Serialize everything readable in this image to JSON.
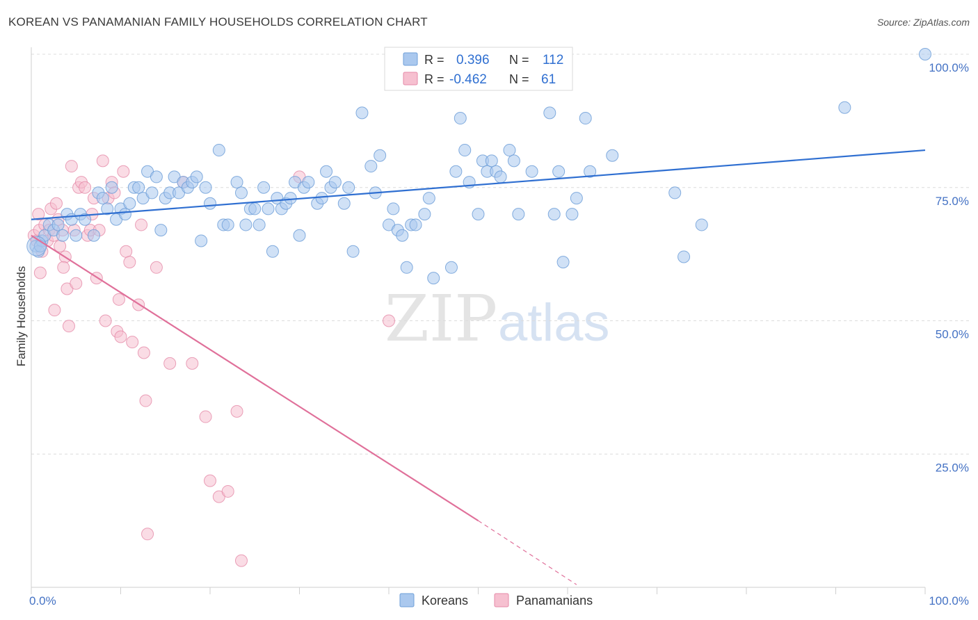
{
  "title": "KOREAN VS PANAMANIAN FAMILY HOUSEHOLDS CORRELATION CHART",
  "source": "Source: ZipAtlas.com",
  "watermark": {
    "zip": "ZIP",
    "atlas": "atlas"
  },
  "legend_box": {
    "row1": {
      "r_label": "R =",
      "r_value": "0.396",
      "n_label": "N =",
      "n_value": "112"
    },
    "row2": {
      "r_label": "R =",
      "r_value": "-0.462",
      "n_label": "N =",
      "n_value": "61"
    }
  },
  "bottom_legend": {
    "a": "Koreans",
    "b": "Panamanians"
  },
  "colors": {
    "blue_fill": "#aac8ee",
    "blue_stroke": "#6f9fd8",
    "blue_line": "#2f6fd1",
    "pink_fill": "#f6c0d0",
    "pink_stroke": "#e58aa8",
    "pink_line": "#e0709a"
  },
  "chart_data": {
    "type": "scatter",
    "title": "KOREAN VS PANAMANIAN FAMILY HOUSEHOLDS CORRELATION CHART",
    "xlabel": "",
    "ylabel": "Family Households",
    "xlim": [
      0,
      100
    ],
    "ylim": [
      0,
      100
    ],
    "x_tick_labels": {
      "left": "0.0%",
      "right": "100.0%"
    },
    "y_tick_labels": [
      "100.0%",
      "75.0%",
      "50.0%",
      "25.0%"
    ],
    "y_tick_values": [
      100,
      75,
      50,
      25
    ],
    "series": [
      {
        "name": "Koreans",
        "r": 0.396,
        "n": 112,
        "trend": {
          "x0": 0,
          "y0": 69.0,
          "x1": 100,
          "y1": 82.0
        },
        "points": [
          [
            0.5,
            64
          ],
          [
            0.8,
            63
          ],
          [
            1.2,
            65
          ],
          [
            1.5,
            66
          ],
          [
            2,
            68
          ],
          [
            2.5,
            67
          ],
          [
            3,
            68
          ],
          [
            3.5,
            66
          ],
          [
            4,
            70
          ],
          [
            4.5,
            69
          ],
          [
            5,
            66
          ],
          [
            5.5,
            70
          ],
          [
            6,
            69
          ],
          [
            7,
            66
          ],
          [
            7.5,
            74
          ],
          [
            8,
            73
          ],
          [
            8.5,
            71
          ],
          [
            9,
            75
          ],
          [
            9.5,
            69
          ],
          [
            10,
            71
          ],
          [
            10.5,
            70
          ],
          [
            11,
            72
          ],
          [
            11.5,
            75
          ],
          [
            12,
            75
          ],
          [
            12.5,
            73
          ],
          [
            13,
            78
          ],
          [
            13.5,
            74
          ],
          [
            14,
            77
          ],
          [
            14.5,
            67
          ],
          [
            15,
            73
          ],
          [
            15.5,
            74
          ],
          [
            16,
            77
          ],
          [
            16.5,
            74
          ],
          [
            17,
            76
          ],
          [
            17.5,
            75
          ],
          [
            18,
            76
          ],
          [
            18.5,
            77
          ],
          [
            19,
            65
          ],
          [
            19.5,
            75
          ],
          [
            20,
            72
          ],
          [
            21,
            82
          ],
          [
            21.5,
            68
          ],
          [
            22,
            68
          ],
          [
            23,
            76
          ],
          [
            23.5,
            74
          ],
          [
            24,
            68
          ],
          [
            24.5,
            71
          ],
          [
            25,
            71
          ],
          [
            25.5,
            68
          ],
          [
            26,
            75
          ],
          [
            26.5,
            71
          ],
          [
            27,
            63
          ],
          [
            27.5,
            73
          ],
          [
            28,
            71
          ],
          [
            28.5,
            72
          ],
          [
            29,
            73
          ],
          [
            29.5,
            76
          ],
          [
            30,
            66
          ],
          [
            30.5,
            75
          ],
          [
            31,
            76
          ],
          [
            32,
            72
          ],
          [
            32.5,
            73
          ],
          [
            33,
            78
          ],
          [
            33.5,
            75
          ],
          [
            34,
            76
          ],
          [
            35,
            72
          ],
          [
            35.5,
            75
          ],
          [
            36,
            63
          ],
          [
            37,
            89
          ],
          [
            38,
            79
          ],
          [
            38.5,
            74
          ],
          [
            39,
            81
          ],
          [
            40,
            68
          ],
          [
            40.5,
            71
          ],
          [
            41,
            67
          ],
          [
            41.5,
            66
          ],
          [
            42,
            60
          ],
          [
            42.5,
            68
          ],
          [
            43,
            68
          ],
          [
            44,
            70
          ],
          [
            44.5,
            73
          ],
          [
            45,
            58
          ],
          [
            47,
            60
          ],
          [
            47.5,
            78
          ],
          [
            48,
            88
          ],
          [
            48.5,
            82
          ],
          [
            49,
            76
          ],
          [
            50,
            70
          ],
          [
            50.5,
            80
          ],
          [
            51,
            78
          ],
          [
            51.5,
            80
          ],
          [
            52,
            78
          ],
          [
            52.5,
            77
          ],
          [
            53.5,
            82
          ],
          [
            54,
            80
          ],
          [
            54.5,
            70
          ],
          [
            56,
            78
          ],
          [
            58,
            89
          ],
          [
            58.5,
            70
          ],
          [
            59,
            78
          ],
          [
            59.5,
            61
          ],
          [
            60.5,
            70
          ],
          [
            61,
            73
          ],
          [
            62,
            88
          ],
          [
            62.5,
            78
          ],
          [
            65,
            81
          ],
          [
            72,
            74
          ],
          [
            73,
            62
          ],
          [
            75,
            68
          ],
          [
            91,
            90
          ],
          [
            100,
            100
          ],
          [
            1,
            64
          ]
        ]
      },
      {
        "name": "Panamanians",
        "r": -0.462,
        "n": 61,
        "trend": {
          "x0": 0,
          "y0": 66.0,
          "x1": 50,
          "y1": 12.5,
          "dash_to_x": 61,
          "dash_to_y": 0.5
        },
        "points": [
          [
            0.3,
            66
          ],
          [
            0.6,
            65
          ],
          [
            0.9,
            67
          ],
          [
            1.2,
            63
          ],
          [
            1.5,
            68
          ],
          [
            1.8,
            65
          ],
          [
            2,
            67
          ],
          [
            2.2,
            71
          ],
          [
            2.5,
            66
          ],
          [
            2.8,
            72
          ],
          [
            3,
            69
          ],
          [
            3.2,
            64
          ],
          [
            3.5,
            67
          ],
          [
            3.8,
            62
          ],
          [
            4,
            56
          ],
          [
            4.2,
            49
          ],
          [
            4.5,
            79
          ],
          [
            4.8,
            67
          ],
          [
            5,
            57
          ],
          [
            5.3,
            75
          ],
          [
            5.6,
            76
          ],
          [
            6,
            75
          ],
          [
            6.3,
            66
          ],
          [
            6.6,
            67
          ],
          [
            7,
            73
          ],
          [
            7.3,
            58
          ],
          [
            7.6,
            67
          ],
          [
            8,
            80
          ],
          [
            8.3,
            50
          ],
          [
            8.6,
            73
          ],
          [
            9,
            76
          ],
          [
            9.3,
            74
          ],
          [
            9.6,
            48
          ],
          [
            10,
            47
          ],
          [
            10.3,
            78
          ],
          [
            10.6,
            63
          ],
          [
            11,
            61
          ],
          [
            11.3,
            46
          ],
          [
            12,
            53
          ],
          [
            12.3,
            68
          ],
          [
            12.6,
            44
          ],
          [
            12.8,
            35
          ],
          [
            13,
            10
          ],
          [
            14,
            60
          ],
          [
            15.5,
            42
          ],
          [
            17,
            76
          ],
          [
            18,
            42
          ],
          [
            19.5,
            32
          ],
          [
            20,
            20
          ],
          [
            21,
            17
          ],
          [
            22,
            18
          ],
          [
            23,
            33
          ],
          [
            23.5,
            5
          ],
          [
            1,
            59
          ],
          [
            2.6,
            52
          ],
          [
            3.6,
            60
          ],
          [
            6.8,
            70
          ],
          [
            9.8,
            54
          ],
          [
            30,
            77
          ],
          [
            40,
            50
          ],
          [
            0.8,
            70
          ]
        ]
      }
    ]
  }
}
